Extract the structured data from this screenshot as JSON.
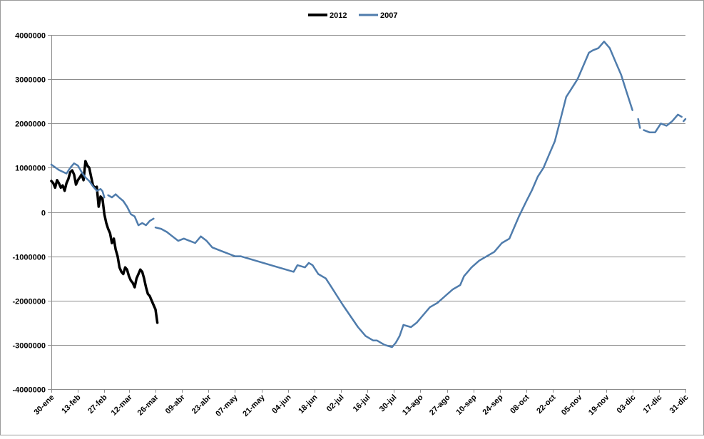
{
  "chart_data": {
    "type": "line",
    "title": "",
    "xlabel": "",
    "ylabel": "",
    "ylim": [
      -4000000,
      4000000
    ],
    "yticks": [
      -4000000,
      -3000000,
      -2000000,
      -1000000,
      0,
      1000000,
      2000000,
      3000000,
      4000000
    ],
    "ytick_labels": [
      "-4000000",
      "-3000000",
      "-2000000",
      "-1000000",
      "0",
      "1000000",
      "2000000",
      "3000000",
      "4000000"
    ],
    "xlim": [
      30,
      365
    ],
    "x_ticks": [
      {
        "day": 30,
        "label": "30-ene"
      },
      {
        "day": 44,
        "label": "13-feb"
      },
      {
        "day": 58,
        "label": "27-feb"
      },
      {
        "day": 71,
        "label": "12-mar"
      },
      {
        "day": 85,
        "label": "26-mar"
      },
      {
        "day": 99,
        "label": "09-abr"
      },
      {
        "day": 113,
        "label": "23-abr"
      },
      {
        "day": 127,
        "label": "07-may"
      },
      {
        "day": 141,
        "label": "21-may"
      },
      {
        "day": 155,
        "label": "04-jun"
      },
      {
        "day": 169,
        "label": "18-jun"
      },
      {
        "day": 183,
        "label": "02-jul"
      },
      {
        "day": 197,
        "label": "16-jul"
      },
      {
        "day": 211,
        "label": "30-jul"
      },
      {
        "day": 225,
        "label": "13-ago"
      },
      {
        "day": 239,
        "label": "27-ago"
      },
      {
        "day": 253,
        "label": "10-sep"
      },
      {
        "day": 267,
        "label": "24-sep"
      },
      {
        "day": 281,
        "label": "08-oct"
      },
      {
        "day": 295,
        "label": "22-oct"
      },
      {
        "day": 309,
        "label": "05-nov"
      },
      {
        "day": 323,
        "label": "19-nov"
      },
      {
        "day": 337,
        "label": "03-dic"
      },
      {
        "day": 351,
        "label": "17-dic"
      },
      {
        "day": 365,
        "label": "31-dic"
      }
    ],
    "grid": true,
    "legend_position": "top-center",
    "series": [
      {
        "name": "2012",
        "color": "#000000",
        "segments": [
          [
            [
              30,
              700000
            ],
            [
              31,
              650000
            ],
            [
              32,
              550000
            ],
            [
              33,
              720000
            ],
            [
              34,
              650000
            ],
            [
              35,
              550000
            ],
            [
              36,
              600000
            ],
            [
              37,
              480000
            ],
            [
              38,
              650000
            ],
            [
              39,
              750000
            ],
            [
              40,
              900000
            ],
            [
              41,
              940000
            ],
            [
              42,
              850000
            ],
            [
              43,
              620000
            ],
            [
              44,
              720000
            ],
            [
              45,
              780000
            ],
            [
              46,
              850000
            ],
            [
              47,
              720000
            ],
            [
              48,
              1150000
            ],
            [
              49,
              1050000
            ],
            [
              50,
              1000000
            ],
            [
              51,
              800000
            ],
            [
              52,
              600000
            ],
            [
              53,
              550000
            ],
            [
              54,
              570000
            ],
            [
              55,
              120000
            ],
            [
              56,
              350000
            ],
            [
              57,
              300000
            ],
            [
              58,
              -50000
            ],
            [
              59,
              -250000
            ],
            [
              60,
              -380000
            ],
            [
              61,
              -480000
            ],
            [
              62,
              -700000
            ],
            [
              63,
              -600000
            ],
            [
              64,
              -850000
            ],
            [
              65,
              -1000000
            ],
            [
              66,
              -1250000
            ],
            [
              67,
              -1350000
            ],
            [
              68,
              -1400000
            ],
            [
              69,
              -1250000
            ],
            [
              70,
              -1300000
            ],
            [
              71,
              -1450000
            ],
            [
              72,
              -1550000
            ],
            [
              73,
              -1600000
            ],
            [
              74,
              -1700000
            ],
            [
              75,
              -1500000
            ],
            [
              76,
              -1400000
            ],
            [
              77,
              -1300000
            ],
            [
              78,
              -1350000
            ],
            [
              79,
              -1500000
            ],
            [
              80,
              -1700000
            ],
            [
              81,
              -1850000
            ],
            [
              82,
              -1900000
            ],
            [
              83,
              -2000000
            ],
            [
              84,
              -2100000
            ],
            [
              85,
              -2200000
            ],
            [
              86,
              -2500000
            ]
          ]
        ]
      },
      {
        "name": "2007",
        "color": "#4f7cac",
        "segments": [
          [
            [
              30,
              1070000
            ],
            [
              34,
              950000
            ],
            [
              38,
              870000
            ],
            [
              40,
              1000000
            ],
            [
              42,
              1100000
            ],
            [
              44,
              1050000
            ],
            [
              46,
              900000
            ],
            [
              48,
              780000
            ],
            [
              50,
              700000
            ],
            [
              52,
              580000
            ],
            [
              54,
              480000
            ],
            [
              56,
              520000
            ],
            [
              57,
              470000
            ],
            [
              58,
              330000
            ]
          ],
          [
            [
              60,
              380000
            ],
            [
              62,
              330000
            ],
            [
              64,
              400000
            ],
            [
              66,
              320000
            ],
            [
              68,
              250000
            ],
            [
              70,
              120000
            ],
            [
              72,
              -50000
            ],
            [
              74,
              -100000
            ],
            [
              76,
              -300000
            ],
            [
              78,
              -250000
            ],
            [
              80,
              -300000
            ],
            [
              82,
              -200000
            ],
            [
              84,
              -150000
            ]
          ],
          [
            [
              85,
              -350000
            ],
            [
              88,
              -380000
            ],
            [
              91,
              -450000
            ],
            [
              94,
              -550000
            ],
            [
              97,
              -650000
            ],
            [
              100,
              -600000
            ],
            [
              103,
              -650000
            ],
            [
              106,
              -700000
            ],
            [
              109,
              -550000
            ],
            [
              112,
              -650000
            ],
            [
              115,
              -800000
            ],
            [
              118,
              -850000
            ],
            [
              121,
              -900000
            ],
            [
              124,
              -950000
            ],
            [
              127,
              -1000000
            ],
            [
              130,
              -1000000
            ],
            [
              134,
              -1050000
            ],
            [
              138,
              -1100000
            ],
            [
              142,
              -1150000
            ],
            [
              146,
              -1200000
            ],
            [
              150,
              -1250000
            ],
            [
              154,
              -1300000
            ],
            [
              158,
              -1350000
            ],
            [
              160,
              -1200000
            ],
            [
              164,
              -1250000
            ],
            [
              166,
              -1150000
            ],
            [
              168,
              -1200000
            ],
            [
              171,
              -1400000
            ],
            [
              175,
              -1500000
            ],
            [
              178,
              -1700000
            ],
            [
              181,
              -1900000
            ],
            [
              184,
              -2100000
            ],
            [
              188,
              -2350000
            ],
            [
              192,
              -2600000
            ],
            [
              196,
              -2800000
            ],
            [
              200,
              -2900000
            ],
            [
              202,
              -2900000
            ],
            [
              206,
              -3000000
            ],
            [
              210,
              -3050000
            ],
            [
              212,
              -2950000
            ],
            [
              214,
              -2800000
            ],
            [
              216,
              -2550000
            ],
            [
              220,
              -2600000
            ],
            [
              223,
              -2500000
            ],
            [
              226,
              -2350000
            ],
            [
              230,
              -2150000
            ],
            [
              234,
              -2050000
            ],
            [
              238,
              -1900000
            ],
            [
              242,
              -1750000
            ],
            [
              246,
              -1650000
            ],
            [
              248,
              -1450000
            ],
            [
              252,
              -1250000
            ],
            [
              256,
              -1100000
            ],
            [
              260,
              -1000000
            ],
            [
              264,
              -900000
            ],
            [
              268,
              -700000
            ],
            [
              272,
              -600000
            ],
            [
              274,
              -400000
            ],
            [
              277,
              -100000
            ],
            [
              281,
              250000
            ],
            [
              284,
              500000
            ],
            [
              287,
              800000
            ],
            [
              290,
              1000000
            ],
            [
              293,
              1300000
            ],
            [
              296,
              1600000
            ],
            [
              299,
              2100000
            ],
            [
              302,
              2600000
            ],
            [
              305,
              2800000
            ],
            [
              308,
              3000000
            ],
            [
              311,
              3300000
            ],
            [
              314,
              3600000
            ],
            [
              316,
              3650000
            ],
            [
              319,
              3700000
            ],
            [
              322,
              3850000
            ],
            [
              325,
              3700000
            ],
            [
              328,
              3400000
            ],
            [
              331,
              3100000
            ],
            [
              334,
              2700000
            ],
            [
              337,
              2300000
            ]
          ],
          [
            [
              340,
              2100000
            ],
            [
              341,
              1900000
            ]
          ],
          [
            [
              343,
              1850000
            ],
            [
              346,
              1800000
            ],
            [
              349,
              1800000
            ],
            [
              352,
              2000000
            ],
            [
              355,
              1950000
            ],
            [
              358,
              2050000
            ],
            [
              361,
              2200000
            ],
            [
              363,
              2150000
            ]
          ],
          [
            [
              364,
              2050000
            ],
            [
              365,
              2100000
            ]
          ]
        ]
      }
    ]
  }
}
